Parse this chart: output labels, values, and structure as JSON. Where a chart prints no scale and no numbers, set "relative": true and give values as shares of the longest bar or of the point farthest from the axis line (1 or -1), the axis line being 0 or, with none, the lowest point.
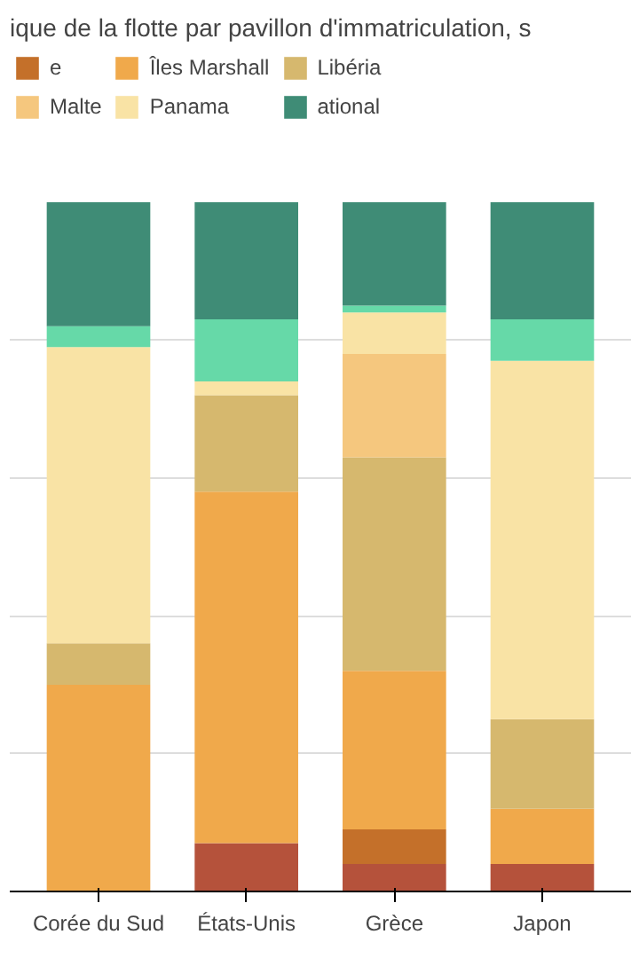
{
  "chart_data": {
    "type": "bar",
    "title": "ique de la flotte par pavillon d'immatriculation, s",
    "stacked": true,
    "relative": true,
    "grid": "y",
    "legend": "top",
    "categories": [
      "Corée du Sud",
      "États-Unis",
      "Grèce",
      "Japon"
    ],
    "series": [
      {
        "color": "#b5523b",
        "values": [
          0,
          0.07,
          0.04,
          0.04
        ]
      },
      {
        "name": "e",
        "color": "#c4702a",
        "values": [
          0,
          0,
          0.05,
          0
        ]
      },
      {
        "name": "Îles Marshall",
        "color": "#f0a94b",
        "values": [
          0.3,
          0.51,
          0.23,
          0.08
        ]
      },
      {
        "name": "Libéria",
        "color": "#d6b86e",
        "values": [
          0.06,
          0.14,
          0.31,
          0.13
        ]
      },
      {
        "name": "Malte",
        "color": "#f5c77e",
        "values": [
          0,
          0,
          0.15,
          0
        ]
      },
      {
        "name": "Panama",
        "color": "#f9e3a5",
        "values": [
          0.43,
          0.02,
          0.06,
          0.52
        ]
      },
      {
        "color": "#66d9a8",
        "values": [
          0.03,
          0.09,
          0.01,
          0.06
        ]
      },
      {
        "name": "ational",
        "color": "#3f8c76",
        "values": [
          0.18,
          0.17,
          0.15,
          0.17
        ]
      }
    ]
  }
}
